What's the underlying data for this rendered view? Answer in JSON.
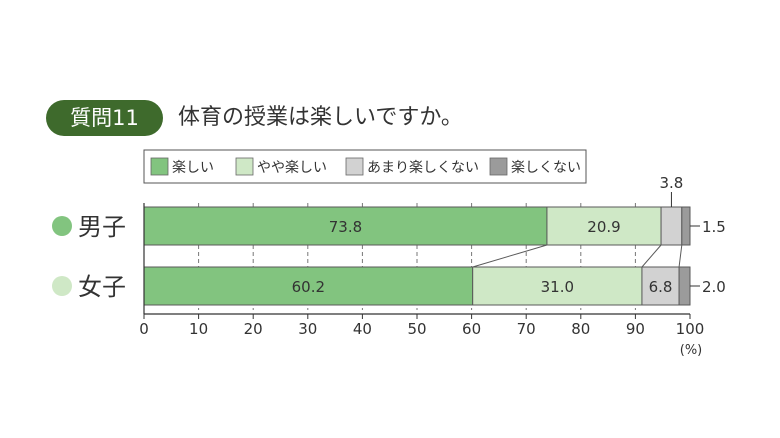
{
  "question": {
    "badge": "質問11",
    "text": "体育の授業は楽しいですか。"
  },
  "chart_data": {
    "type": "bar",
    "orientation": "horizontal",
    "stacked": true,
    "categories": [
      "男子",
      "女子"
    ],
    "series": [
      {
        "name": "楽しい",
        "color": "#82c47f",
        "values": [
          73.8,
          60.2
        ]
      },
      {
        "name": "やや楽しい",
        "color": "#cfe8c6",
        "values": [
          20.9,
          31.0
        ]
      },
      {
        "name": "あまり楽しくない",
        "color": "#d2d2d2",
        "values": [
          3.8,
          6.8
        ]
      },
      {
        "name": "楽しくない",
        "color": "#9b9b9b",
        "values": [
          1.5,
          2.0
        ]
      }
    ],
    "xlim": [
      0,
      100
    ],
    "xticks": [
      "0",
      "10",
      "20",
      "30",
      "40",
      "50",
      "60",
      "70",
      "80",
      "90",
      "100"
    ],
    "x_unit": "(%)",
    "category_marker_colors": [
      "#82c47f",
      "#cfe8c6"
    ],
    "legend": "top",
    "grid": true
  }
}
